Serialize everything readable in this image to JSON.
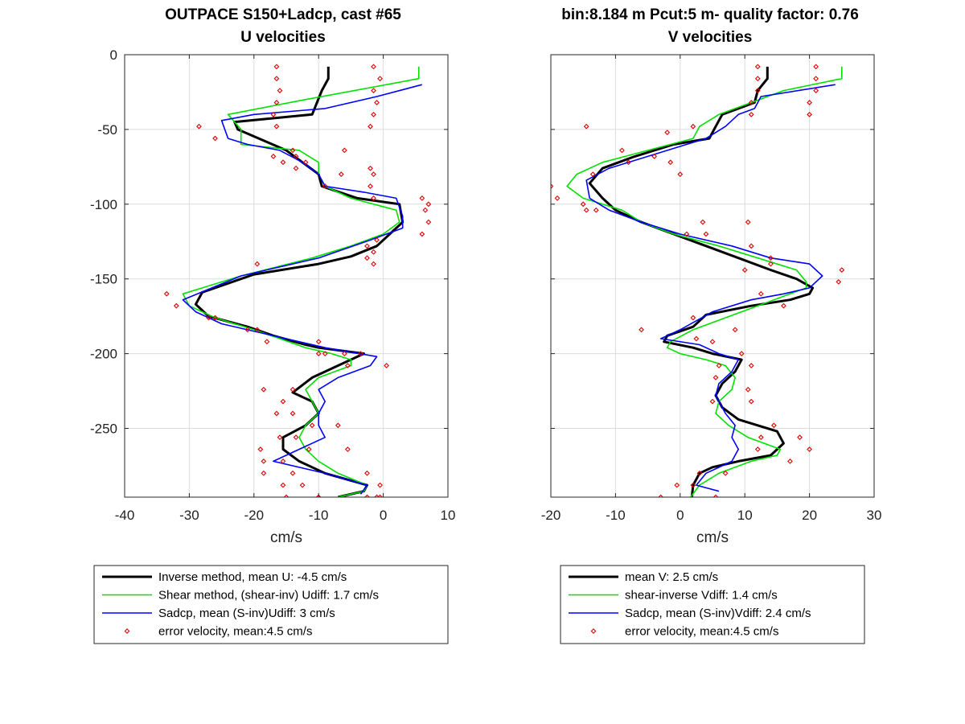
{
  "colors": {
    "inverse": "#000000",
    "shear": "#00e000",
    "sadcp": "#0000ff",
    "error": "#e00000"
  },
  "header": {
    "left_title_line1": "OUTPACE S150+Ladcp, cast #65",
    "left_title_line2": "U velocities",
    "right_title_line1": "bin:8.184 m  Pcut:5 m- quality factor:  0.76",
    "right_title_line2": "V velocities"
  },
  "chart_data": [
    {
      "type": "line",
      "title": "U velocities",
      "xlabel": "cm/s",
      "ylabel": "",
      "xlim": [
        -40,
        10
      ],
      "ylim": [
        -296,
        0
      ],
      "xticks": [
        -40,
        -30,
        -20,
        -10,
        0,
        10
      ],
      "yticks": [
        0,
        -50,
        -100,
        -150,
        -200,
        -250
      ],
      "xtick_labels": [
        "-40",
        "-30",
        "-20",
        "-10",
        "0",
        "10"
      ],
      "ytick_labels": [
        "0",
        "-50",
        "-100",
        "-150",
        "-200",
        "-250"
      ],
      "grid": true,
      "legend": {
        "placement": "below",
        "entries": [
          "Inverse method, mean U:  -4.5 cm/s",
          "Shear method, (shear-inv)  Udiff:  1.7 cm/s",
          "Sadcp, mean (S-inv)Udiff: 3 cm/s",
          "error velocity, mean:4.5 cm/s"
        ]
      },
      "series": [
        {
          "name": "Inverse method",
          "style": "line-thick",
          "color": "#000000",
          "x": [
            -8.5,
            -8.5,
            -9.5,
            -11,
            -23,
            -22.5,
            -15,
            -12.5,
            -10,
            -9.5,
            -4,
            2.5,
            3,
            -1,
            -5,
            -10,
            -20,
            -28,
            -29,
            -27,
            -21,
            -17,
            -12,
            -10,
            -3,
            -7,
            -11,
            -14,
            -11,
            -10,
            -12,
            -15.5,
            -15.5,
            -13,
            -9,
            -2.5,
            -3,
            -7
          ],
          "y": [
            -8,
            -16,
            -24,
            -40,
            -45,
            -50,
            -64,
            -72,
            -80,
            -88,
            -96,
            -100,
            -112,
            -128,
            -135,
            -140,
            -147,
            -159,
            -167,
            -175,
            -182,
            -188,
            -194,
            -196,
            -200,
            -208,
            -216,
            -226,
            -232,
            -240,
            -248,
            -256,
            -264,
            -272,
            -280,
            -288,
            -292,
            -296
          ]
        },
        {
          "name": "Shear method",
          "style": "line",
          "color": "#00e000",
          "x": [
            5.5,
            5.5,
            -12,
            -24,
            -22,
            -22,
            -13,
            -10,
            -10,
            -9,
            -5,
            2,
            2.5,
            0,
            -5,
            -11,
            -22,
            -31,
            -30,
            -26,
            -20,
            -16,
            -12,
            -8,
            -5,
            -5,
            -10,
            -12,
            -11,
            -10,
            -12,
            -13,
            -12,
            -10,
            -7,
            -2.5,
            -3,
            -7
          ],
          "y": [
            -8,
            -16,
            -30,
            -40,
            -50,
            -60,
            -64,
            -72,
            -80,
            -88,
            -96,
            -104,
            -112,
            -120,
            -128,
            -136,
            -148,
            -160,
            -168,
            -176,
            -184,
            -190,
            -196,
            -200,
            -204,
            -208,
            -216,
            -224,
            -232,
            -240,
            -248,
            -256,
            -264,
            -272,
            -280,
            -288,
            -292,
            -296
          ]
        },
        {
          "name": "Sadcp",
          "style": "line",
          "color": "#0000ff",
          "x": [
            6,
            -1,
            -9,
            -20,
            -25,
            -24,
            -21,
            -16,
            -12.5,
            -10,
            -9,
            -3,
            2,
            3,
            3,
            -2,
            -10,
            -22,
            -31,
            -29,
            -25,
            -19,
            -13,
            -9,
            -1,
            -2,
            -7,
            -10,
            -9,
            -10,
            -10,
            -9,
            -13,
            -17,
            -9,
            -2.5,
            -3.5
          ],
          "y": [
            -20,
            -28,
            -36,
            -40,
            -44,
            -56,
            -60,
            -64,
            -72,
            -80,
            -88,
            -92,
            -96,
            -108,
            -116,
            -124,
            -136,
            -148,
            -164,
            -172,
            -180,
            -186,
            -192,
            -196,
            -202,
            -208,
            -216,
            -224,
            -232,
            -240,
            -248,
            -256,
            -264,
            -272,
            -280,
            -288,
            -294
          ]
        },
        {
          "name": "error velocity",
          "style": "markers",
          "color": "#e00000",
          "x": [
            -16.5,
            -1.5,
            -16.5,
            -0.5,
            -16,
            -1.5,
            -16.5,
            -1,
            -17,
            -1.5,
            -16.5,
            -2,
            -28.5,
            -26,
            -14,
            -6,
            -17,
            -13.5,
            -15.5,
            -12,
            -13.5,
            -2,
            -6.5,
            -1.5,
            -9,
            -2,
            -1.5,
            6,
            7,
            6.5,
            7,
            6,
            -1,
            -2.5,
            -1.5,
            -2.5,
            -19.5,
            -1.5,
            -33.5,
            -32,
            -27,
            -26,
            -21,
            -19.5,
            -18,
            -10,
            -9,
            -3.5,
            -10,
            -6,
            -5.5,
            0.5,
            -14,
            -18.5,
            -15.5,
            -16.5,
            -14,
            -11,
            -7,
            -13.5,
            -16,
            -11.5,
            -5.5,
            -19,
            -18.5,
            -15.5,
            -2.5,
            -18.5,
            -14,
            -15.5,
            -12.5,
            -0.5,
            -2.5,
            -0.5,
            -1,
            -10,
            -15,
            -10
          ],
          "y": [
            -8,
            -8,
            -16,
            -16,
            -24,
            -24,
            -32,
            -32,
            -40,
            -40,
            -48,
            -48,
            -48,
            -56,
            -64,
            -64,
            -68,
            -68,
            -72,
            -72,
            -76,
            -76,
            -80,
            -80,
            -88,
            -88,
            -96,
            -96,
            -100,
            -104,
            -112,
            -120,
            -124,
            -128,
            -132,
            -136,
            -140,
            -140,
            -160,
            -168,
            -176,
            -176,
            -184,
            -184,
            -192,
            -192,
            -200,
            -200,
            -200,
            -200,
            -208,
            -208,
            -224,
            -224,
            -232,
            -240,
            -240,
            -248,
            -248,
            -256,
            -256,
            -264,
            -264,
            -264,
            -272,
            -272,
            -280,
            -280,
            -280,
            -288,
            -288,
            -288,
            -296,
            -296,
            -296,
            -296,
            -296,
            -296
          ]
        }
      ]
    },
    {
      "type": "line",
      "title": "V velocities",
      "xlabel": "cm/s",
      "ylabel": "",
      "xlim": [
        -20,
        30
      ],
      "ylim": [
        -296,
        0
      ],
      "xticks": [
        -20,
        -10,
        0,
        10,
        20,
        30
      ],
      "yticks": [
        0,
        -50,
        -100,
        -150,
        -200,
        -250
      ],
      "xtick_labels": [
        "-20",
        "-10",
        "0",
        "10",
        "20",
        "30"
      ],
      "ytick_labels": [],
      "grid": true,
      "legend": {
        "placement": "below",
        "entries": [
          "mean V:  2.5 cm/s",
          "shear-inverse Vdiff:  1.4 cm/s",
          "Sadcp, mean (S-inv)Vdiff: 2.4 cm/s",
          "error velocity, mean:4.5 cm/s"
        ]
      },
      "series": [
        {
          "name": "mean V",
          "style": "line-thick",
          "color": "#000000",
          "x": [
            13.5,
            13.5,
            12,
            11.5,
            6.5,
            5.5,
            4.5,
            -1,
            -7,
            -12,
            -14,
            -12,
            -10,
            -6,
            -1,
            4,
            9,
            14,
            18,
            20.5,
            20,
            17,
            11,
            4,
            2,
            -2,
            -2.5,
            2,
            5,
            9.5,
            8.5,
            6.5,
            5.5,
            6.5,
            9,
            15,
            16,
            14,
            9,
            5,
            3,
            2,
            1.8
          ],
          "y": [
            -8,
            -16,
            -24,
            -32,
            -40,
            -48,
            -56,
            -60,
            -68,
            -76,
            -86,
            -96,
            -104,
            -112,
            -120,
            -128,
            -136,
            -144,
            -150,
            -156,
            -160,
            -164,
            -168,
            -174,
            -182,
            -188,
            -192,
            -196,
            -200,
            -204,
            -212,
            -220,
            -228,
            -236,
            -244,
            -252,
            -260,
            -268,
            -272,
            -276,
            -280,
            -288,
            -296
          ]
        },
        {
          "name": "shear-inverse Vdiff",
          "style": "line",
          "color": "#00e000",
          "x": [
            25,
            25,
            16,
            11,
            6,
            3,
            2,
            -5,
            -12,
            -16,
            -17.5,
            -15,
            -9,
            -6,
            -1,
            6,
            12,
            18,
            19.5,
            19.5,
            17,
            12,
            7,
            2,
            -1.5,
            -2,
            0,
            4,
            7,
            8.5,
            8,
            6,
            5.5,
            7.5,
            10.5,
            15.5,
            15,
            11,
            6,
            3,
            1.6
          ],
          "y": [
            -8,
            -16,
            -24,
            -32,
            -40,
            -48,
            -56,
            -64,
            -72,
            -80,
            -88,
            -96,
            -104,
            -112,
            -120,
            -128,
            -136,
            -144,
            -152,
            -156,
            -160,
            -168,
            -176,
            -184,
            -192,
            -196,
            -200,
            -204,
            -208,
            -216,
            -224,
            -232,
            -240,
            -248,
            -256,
            -264,
            -268,
            -272,
            -280,
            -288,
            -296
          ]
        },
        {
          "name": "Sadcp",
          "style": "line",
          "color": "#0000ff",
          "x": [
            24,
            12.5,
            11.5,
            9,
            7,
            4,
            1,
            -5,
            -11,
            -14.5,
            -14,
            -11,
            -6,
            0,
            8,
            14,
            20,
            22,
            20,
            16,
            11,
            5,
            0,
            -2,
            -3,
            3,
            6,
            9,
            8,
            6,
            5.5,
            7,
            8.5,
            8,
            9,
            8,
            4,
            2.5,
            6
          ],
          "y": [
            -20,
            -28,
            -36,
            -40,
            -48,
            -56,
            -60,
            -68,
            -76,
            -84,
            -96,
            -104,
            -112,
            -120,
            -128,
            -136,
            -140,
            -148,
            -156,
            -160,
            -164,
            -172,
            -184,
            -188,
            -190,
            -194,
            -200,
            -204,
            -212,
            -220,
            -228,
            -240,
            -248,
            -256,
            -264,
            -272,
            -280,
            -288,
            -292
          ]
        },
        {
          "name": "error velocity",
          "style": "markers",
          "color": "#e00000",
          "x": [
            12,
            21,
            12,
            21,
            12,
            21,
            11,
            20,
            11,
            20,
            2,
            -14.5,
            -2,
            -9,
            -4,
            -1.5,
            -8,
            0,
            -13.5,
            -20,
            -19,
            -14.5,
            -15,
            -13,
            3.5,
            10.5,
            1,
            4,
            11,
            14,
            14,
            10,
            25,
            24.5,
            12.5,
            16,
            2,
            8.5,
            -6,
            2.5,
            5,
            9.5,
            6,
            11,
            5.5,
            10.5,
            5,
            11,
            14.5,
            12.5,
            18.5,
            20,
            12,
            17,
            3,
            7,
            -0.5,
            2,
            -3,
            5.5
          ],
          "y": [
            -8,
            -8,
            -16,
            -16,
            -24,
            -24,
            -32,
            -32,
            -40,
            -40,
            -48,
            -48,
            -52,
            -64,
            -68,
            -72,
            -72,
            -80,
            -80,
            -88,
            -96,
            -104,
            -100,
            -104,
            -112,
            -112,
            -120,
            -120,
            -128,
            -136,
            -140,
            -144,
            -144,
            -152,
            -160,
            -168,
            -176,
            -184,
            -184,
            -190,
            -192,
            -200,
            -208,
            -208,
            -216,
            -224,
            -232,
            -232,
            -248,
            -256,
            -256,
            -264,
            -264,
            -272,
            -280,
            -280,
            -288,
            -288,
            -296,
            -296
          ]
        }
      ]
    }
  ]
}
